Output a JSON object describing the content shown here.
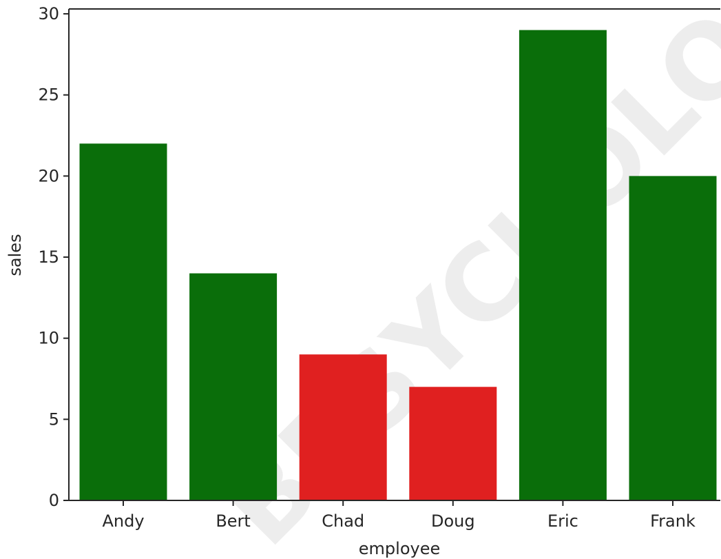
{
  "chart_data": {
    "type": "bar",
    "categories": [
      "Andy",
      "Bert",
      "Chad",
      "Doug",
      "Eric",
      "Frank"
    ],
    "values": [
      22,
      14,
      9,
      7,
      29,
      20
    ],
    "bar_colors": [
      "#0a6e0a",
      "#0a6e0a",
      "#e02020",
      "#e02020",
      "#0a6e0a",
      "#0a6e0a"
    ],
    "title": "",
    "xlabel": "employee",
    "ylabel": "sales",
    "ylim": [
      0,
      30.3
    ],
    "yticks": [
      0,
      5,
      10,
      15,
      20,
      25,
      30
    ],
    "grid": false,
    "legend": "none"
  },
  "watermark": {
    "text": "BPSYCHOLOGY.CO"
  },
  "colors": {
    "green": "#0a6e0a",
    "red": "#e02020",
    "axis": "#262626"
  }
}
